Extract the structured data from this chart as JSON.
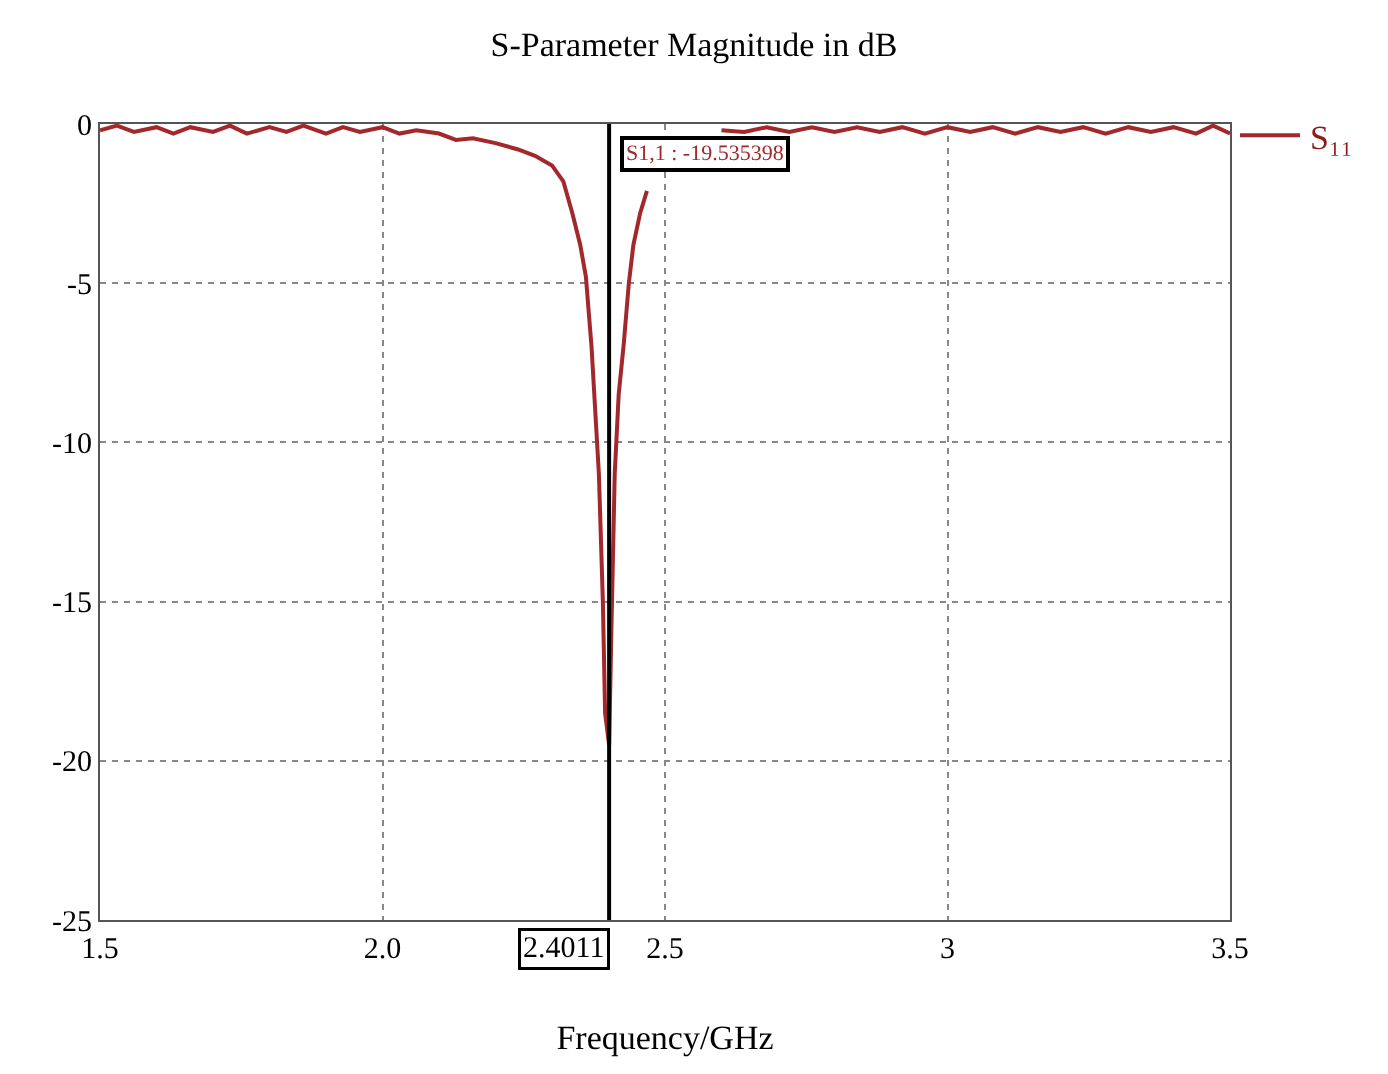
{
  "chart_data": {
    "type": "line",
    "title": "S-Parameter Magnitude in dB",
    "xlabel": "Frequency/GHz",
    "x": [
      1.5,
      1.53,
      1.56,
      1.6,
      1.63,
      1.66,
      1.7,
      1.73,
      1.76,
      1.8,
      1.83,
      1.86,
      1.9,
      1.93,
      1.96,
      2.0,
      2.03,
      2.06,
      2.1,
      2.13,
      2.16,
      2.2,
      2.24,
      2.27,
      2.3,
      2.32,
      2.336,
      2.35,
      2.36,
      2.37,
      2.383,
      2.39,
      2.394,
      2.4011,
      2.405,
      2.411,
      2.418,
      2.427,
      2.436,
      2.444,
      2.456,
      2.468,
      2.49,
      2.52,
      2.56,
      2.6,
      2.64,
      2.68,
      2.72,
      2.76,
      2.8,
      2.84,
      2.88,
      2.92,
      2.96,
      3.0,
      3.04,
      3.08,
      3.12,
      3.16,
      3.2,
      3.24,
      3.28,
      3.32,
      3.36,
      3.4,
      3.44,
      3.47,
      3.5
    ],
    "series": [
      {
        "name": "S₁₁",
        "color": "#a3282c",
        "values": [
          -0.2,
          -0.05,
          -0.25,
          -0.1,
          -0.3,
          -0.1,
          -0.25,
          -0.05,
          -0.3,
          -0.1,
          -0.25,
          -0.05,
          -0.3,
          -0.1,
          -0.25,
          -0.1,
          -0.3,
          -0.2,
          -0.3,
          -0.5,
          -0.45,
          -0.6,
          -0.8,
          -1.0,
          -1.3,
          -1.8,
          -2.8,
          -3.8,
          -4.8,
          -7,
          -11,
          -15,
          -18.5,
          -19.5,
          -16,
          -11,
          -8.5,
          -6.9,
          -5,
          -3.8,
          -2.8,
          -2.1,
          null,
          null,
          null,
          -0.2,
          -0.25,
          -0.1,
          -0.25,
          -0.1,
          -0.25,
          -0.1,
          -0.25,
          -0.1,
          -0.3,
          -0.1,
          -0.25,
          -0.1,
          -0.3,
          -0.1,
          -0.25,
          -0.1,
          -0.3,
          -0.1,
          -0.25,
          -0.1,
          -0.3,
          -0.05,
          -0.3
        ]
      }
    ],
    "xlim": [
      1.5,
      3.5
    ],
    "ylim": [
      -25,
      0
    ],
    "xticks": [
      1.5,
      {
        "value": 2.0,
        "label": "2.0"
      },
      2.5,
      3,
      3.5
    ],
    "yticks": [
      0,
      -5,
      -10,
      -15,
      -20,
      -25
    ],
    "grid": true,
    "legend": "top right",
    "marker": "none",
    "line_style": "solid",
    "ref_lines": [
      {
        "axis": "x",
        "value": 2.4011,
        "label": "2.4011",
        "color": "#000000"
      }
    ],
    "annotations": [
      "S1,1 : -19.535398"
    ]
  }
}
